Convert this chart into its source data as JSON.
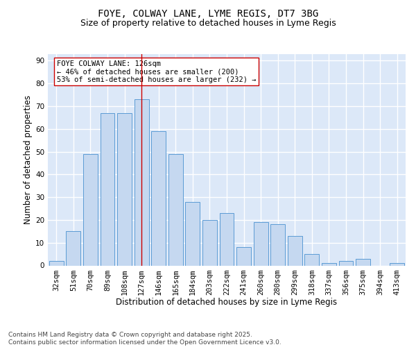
{
  "title_line1": "FOYE, COLWAY LANE, LYME REGIS, DT7 3BG",
  "title_line2": "Size of property relative to detached houses in Lyme Regis",
  "xlabel": "Distribution of detached houses by size in Lyme Regis",
  "ylabel": "Number of detached properties",
  "categories": [
    "32sqm",
    "51sqm",
    "70sqm",
    "89sqm",
    "108sqm",
    "127sqm",
    "146sqm",
    "165sqm",
    "184sqm",
    "203sqm",
    "222sqm",
    "241sqm",
    "260sqm",
    "280sqm",
    "299sqm",
    "318sqm",
    "337sqm",
    "356sqm",
    "375sqm",
    "394sqm",
    "413sqm"
  ],
  "values": [
    2,
    15,
    49,
    67,
    67,
    73,
    59,
    49,
    28,
    20,
    23,
    8,
    19,
    18,
    13,
    5,
    1,
    2,
    3,
    0,
    1
  ],
  "bar_color": "#c5d8f0",
  "bar_edge_color": "#5b9bd5",
  "background_color": "#dce8f8",
  "grid_color": "#ffffff",
  "vline_color": "#cc0000",
  "annotation_text": "FOYE COLWAY LANE: 126sqm\n← 46% of detached houses are smaller (200)\n53% of semi-detached houses are larger (232) →",
  "annotation_box_color": "#ffffff",
  "annotation_box_edge": "#cc0000",
  "ylim": [
    0,
    93
  ],
  "yticks": [
    0,
    10,
    20,
    30,
    40,
    50,
    60,
    70,
    80,
    90
  ],
  "footer": "Contains HM Land Registry data © Crown copyright and database right 2025.\nContains public sector information licensed under the Open Government Licence v3.0.",
  "title_fontsize": 10,
  "subtitle_fontsize": 9,
  "axis_label_fontsize": 8.5,
  "tick_fontsize": 7.5,
  "annotation_fontsize": 7.5,
  "footer_fontsize": 6.5
}
